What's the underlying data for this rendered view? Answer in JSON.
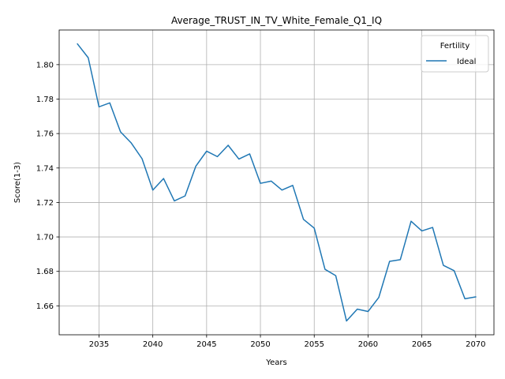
{
  "chart_data": {
    "type": "line",
    "title": "Average_TRUST_IN_TV_White_Female_Q1_IQ",
    "xlabel": "Years",
    "ylabel": "Score(1-3)",
    "xlim": [
      2031.3,
      2071.7
    ],
    "ylim": [
      1.6432,
      1.8201
    ],
    "xticks": [
      2035,
      2040,
      2045,
      2050,
      2055,
      2060,
      2065,
      2070
    ],
    "yticks": [
      1.66,
      1.68,
      1.7,
      1.72,
      1.74,
      1.76,
      1.78,
      1.8
    ],
    "xtick_labels": [
      "2035",
      "2040",
      "2045",
      "2050",
      "2055",
      "2060",
      "2065",
      "2070"
    ],
    "ytick_labels": [
      "1.66",
      "1.68",
      "1.70",
      "1.72",
      "1.74",
      "1.76",
      "1.78",
      "1.80"
    ],
    "grid": true,
    "legend": {
      "title": "Fertility",
      "position": "top-right"
    },
    "series": [
      {
        "name": "Ideal",
        "color": "#1f77b4",
        "x": [
          2033,
          2034,
          2035,
          2036,
          2037,
          2038,
          2039,
          2040,
          2041,
          2042,
          2043,
          2044,
          2045,
          2046,
          2047,
          2048,
          2049,
          2050,
          2051,
          2052,
          2053,
          2054,
          2055,
          2056,
          2057,
          2058,
          2059,
          2060,
          2061,
          2062,
          2063,
          2064,
          2065,
          2066,
          2067,
          2068,
          2069,
          2070
        ],
        "y": [
          1.812,
          1.804,
          1.7755,
          1.7778,
          1.761,
          1.7545,
          1.7454,
          1.7272,
          1.7339,
          1.7209,
          1.7238,
          1.7411,
          1.7498,
          1.7466,
          1.7532,
          1.7452,
          1.7482,
          1.7311,
          1.7324,
          1.7272,
          1.7299,
          1.7102,
          1.7051,
          1.6812,
          1.6775,
          1.6512,
          1.6581,
          1.6567,
          1.6649,
          1.6858,
          1.6868,
          1.7091,
          1.7035,
          1.7055,
          1.6835,
          1.6804,
          1.6641,
          1.6652
        ]
      }
    ]
  }
}
